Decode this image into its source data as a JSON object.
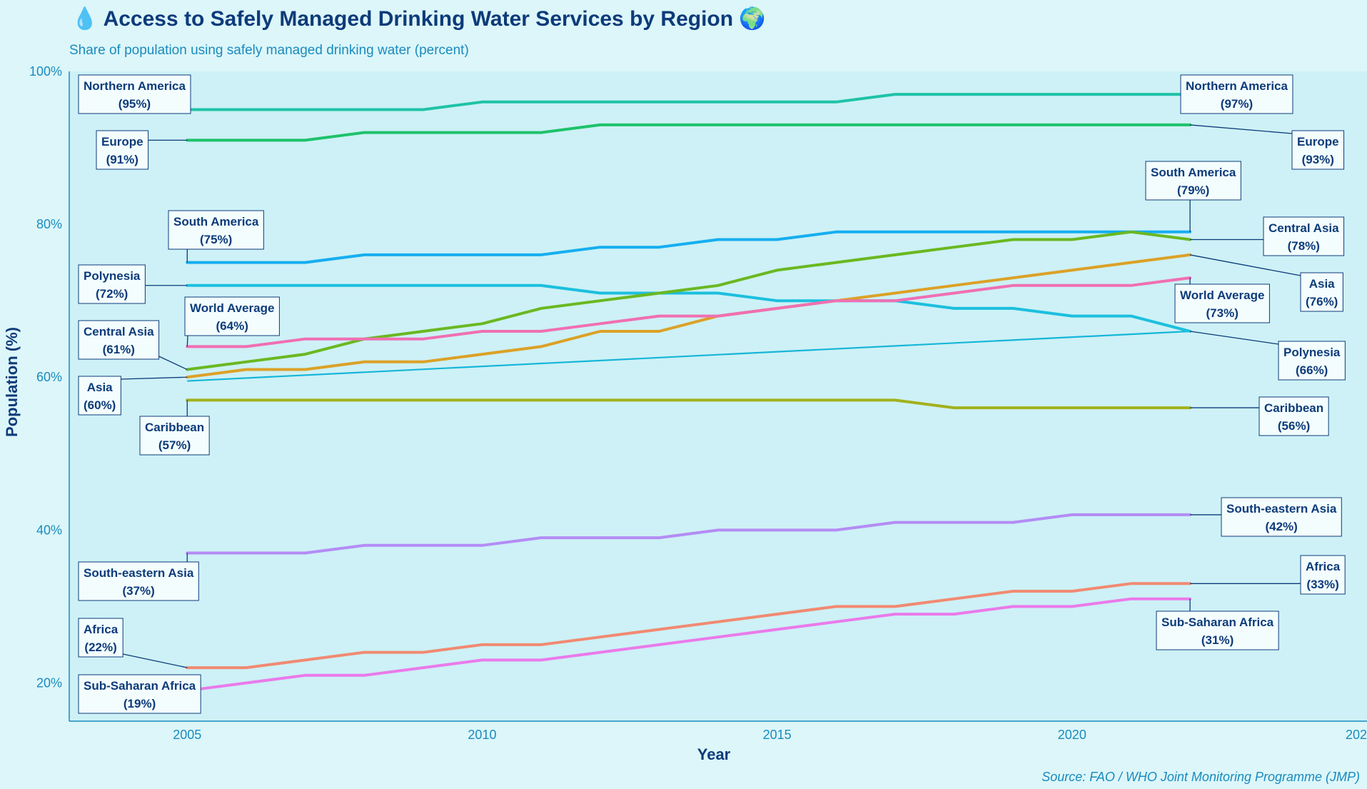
{
  "chart_data": {
    "type": "line",
    "title": "💧 Access to Safely Managed Drinking Water Services by Region 🌍",
    "subtitle": "Share of population using safely managed drinking water (percent)",
    "xlabel": "Year",
    "ylabel": "Population (%)",
    "source": "Source: FAO / WHO Joint Monitoring Programme (JMP)",
    "xlim": [
      2003,
      2025
    ],
    "ylim": [
      15,
      100
    ],
    "x_ticks": [
      2005,
      2010,
      2015,
      2020
    ],
    "x_tick_labels": [
      "2005",
      "2010",
      "2015",
      "2020"
    ],
    "x_tick_edge_label": "202",
    "y_ticks": [
      20,
      40,
      60,
      80,
      100
    ],
    "y_tick_labels": [
      "20%",
      "40%",
      "60%",
      "80%",
      "100%"
    ],
    "grid": false,
    "legend": "none",
    "x": [
      2005,
      2006,
      2007,
      2008,
      2009,
      2010,
      2011,
      2012,
      2013,
      2014,
      2015,
      2016,
      2017,
      2018,
      2019,
      2020,
      2021,
      2022
    ],
    "series": [
      {
        "name": "Northern America",
        "color": "#1fc2a7",
        "width": 4,
        "values": [
          95,
          95,
          95,
          95,
          95,
          96,
          96,
          96,
          96,
          96,
          96,
          96,
          97,
          97,
          97,
          97,
          97,
          97
        ],
        "start_label": "(95%)",
        "end_label": "(97%)"
      },
      {
        "name": "Europe",
        "color": "#1ec26b",
        "width": 4,
        "values": [
          91,
          91,
          91,
          92,
          92,
          92,
          92,
          93,
          93,
          93,
          93,
          93,
          93,
          93,
          93,
          93,
          93,
          93
        ],
        "start_label": "(91%)",
        "end_label": "(93%)"
      },
      {
        "name": "South America",
        "color": "#16aef0",
        "width": 4,
        "values": [
          75,
          75,
          75,
          76,
          76,
          76,
          76,
          77,
          77,
          78,
          78,
          79,
          79,
          79,
          79,
          79,
          79,
          79
        ],
        "start_label": "(75%)",
        "end_label": "(79%)"
      },
      {
        "name": "Polynesia",
        "color": "#1cbfde",
        "width": 4,
        "values": [
          72,
          72,
          72,
          72,
          72,
          72,
          72,
          71,
          71,
          71,
          70,
          70,
          70,
          69,
          69,
          68,
          68,
          66
        ],
        "start_label": "(72%)",
        "end_label": "(66%)"
      },
      {
        "name": "Central Asia",
        "color": "#6ab821",
        "width": 4,
        "values": [
          61,
          62,
          63,
          65,
          66,
          67,
          69,
          70,
          71,
          72,
          74,
          75,
          76,
          77,
          78,
          78,
          79,
          78
        ],
        "start_label": "(61%)",
        "end_label": "(78%)"
      },
      {
        "name": "Asia",
        "color": "#dca127",
        "width": 4,
        "values": [
          60,
          61,
          61,
          62,
          62,
          63,
          64,
          66,
          66,
          68,
          69,
          70,
          71,
          72,
          73,
          74,
          75,
          76
        ],
        "start_label": "(60%)",
        "end_label": "(76%)"
      },
      {
        "name": "World Average",
        "color": "#f06fb3",
        "width": 4,
        "values": [
          64,
          64,
          65,
          65,
          65,
          66,
          66,
          67,
          68,
          68,
          69,
          70,
          70,
          71,
          72,
          72,
          72,
          73
        ],
        "start_label": "(64%)",
        "end_label": "(73%)"
      },
      {
        "name": "Caribbean",
        "color": "#a2b11e",
        "width": 4,
        "values": [
          57,
          57,
          57,
          57,
          57,
          57,
          57,
          57,
          57,
          57,
          57,
          57,
          57,
          56,
          56,
          56,
          56,
          56
        ],
        "start_label": "(57%)",
        "end_label": "(56%)"
      },
      {
        "name": "South-eastern Asia",
        "color": "#b48cf5",
        "width": 4,
        "values": [
          37,
          37,
          37,
          38,
          38,
          38,
          39,
          39,
          39,
          40,
          40,
          40,
          41,
          41,
          41,
          42,
          42,
          42
        ],
        "start_label": "(37%)",
        "end_label": "(42%)"
      },
      {
        "name": "Africa",
        "color": "#f18a72",
        "width": 4,
        "values": [
          22,
          22,
          23,
          24,
          24,
          25,
          25,
          26,
          27,
          28,
          29,
          30,
          30,
          31,
          32,
          32,
          33,
          33
        ],
        "start_label": "(22%)",
        "end_label": "(33%)"
      },
      {
        "name": "Sub-Saharan Africa",
        "color": "#ea7aea",
        "width": 4,
        "values": [
          19,
          20,
          21,
          21,
          22,
          23,
          23,
          24,
          25,
          26,
          27,
          28,
          29,
          29,
          30,
          30,
          31,
          31
        ],
        "start_label": "(19%)",
        "end_label": "(31%)"
      }
    ],
    "trend_line": {
      "color": "#16b5d8",
      "x": [
        2005,
        2022
      ],
      "y": [
        59.5,
        66
      ]
    }
  }
}
